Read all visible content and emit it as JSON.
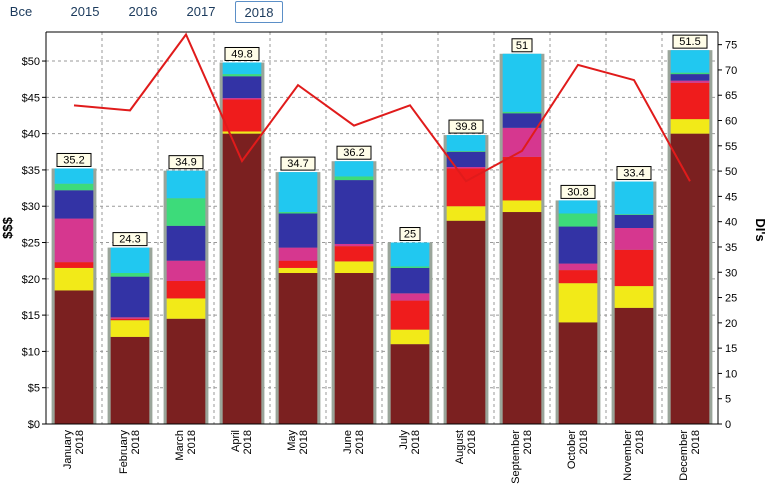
{
  "tabs": [
    {
      "label": "Все",
      "active": false
    },
    {
      "label": "2015",
      "active": false
    },
    {
      "label": "2016",
      "active": false
    },
    {
      "label": "2017",
      "active": false
    },
    {
      "label": "2018",
      "active": true
    }
  ],
  "chart_data": {
    "type": "bar",
    "stacked": true,
    "categories": [
      "January\n2018",
      "February\n2018",
      "March\n2018",
      "April\n2018",
      "May\n2018",
      "June\n2018",
      "July\n2018",
      "August\n2018",
      "September\n2018",
      "October\n2018",
      "November\n2018",
      "December\n2018"
    ],
    "totals": [
      35.2,
      24.3,
      34.9,
      49.8,
      34.7,
      36.2,
      25,
      39.8,
      51,
      30.8,
      33.4,
      51.5
    ],
    "total_labels": [
      "35.2",
      "24.3",
      "34.9",
      "49.8",
      "34.7",
      "36.2",
      "25",
      "39.8",
      "51",
      "30.8",
      "33.4",
      "51.5"
    ],
    "series": [
      {
        "color": "#7b2020",
        "values": [
          18.4,
          12.0,
          14.5,
          40.0,
          20.8,
          20.8,
          11.0,
          28.0,
          29.2,
          14.0,
          16.0,
          40.0
        ]
      },
      {
        "color": "#f2ea18",
        "values": [
          3.1,
          2.3,
          2.8,
          0.3,
          0.7,
          1.6,
          2.0,
          2.0,
          1.6,
          5.4,
          3.0,
          2.0
        ]
      },
      {
        "color": "#ef1c1c",
        "values": [
          0.8,
          0.2,
          2.4,
          4.4,
          1.0,
          2.1,
          4.0,
          5.2,
          6.0,
          1.8,
          5.0,
          5.0
        ]
      },
      {
        "color": "#d6378f",
        "values": [
          6.0,
          0.2,
          2.8,
          0.2,
          1.8,
          0.3,
          1.0,
          0.2,
          4.0,
          0.9,
          3.0,
          0.3
        ]
      },
      {
        "color": "#3333a5",
        "values": [
          3.9,
          5.6,
          4.8,
          3.0,
          4.7,
          8.8,
          3.5,
          2.1,
          2.0,
          5.1,
          1.8,
          0.9
        ]
      },
      {
        "color": "#3ddb7a",
        "values": [
          0.9,
          0.5,
          3.8,
          0.3,
          0.2,
          0.5,
          0.2,
          0.1,
          0.2,
          1.8,
          0.1,
          0.2
        ]
      },
      {
        "color": "#21c8f0",
        "values": [
          2.1,
          3.5,
          3.8,
          1.6,
          5.5,
          2.1,
          3.3,
          2.2,
          8.0,
          1.8,
          4.5,
          3.1
        ]
      }
    ],
    "line": {
      "color": "#e01b1b",
      "axis": "right",
      "values": [
        63,
        62,
        77,
        52,
        67,
        59,
        63,
        48,
        54,
        71,
        68,
        48
      ]
    },
    "ylabel": "$$$",
    "ylabel_right": "DI's",
    "ylim": [
      0,
      54
    ],
    "ylim_right": [
      0,
      77.5
    ],
    "yticks": [
      0,
      5,
      10,
      15,
      20,
      25,
      30,
      35,
      40,
      45,
      50
    ],
    "ytick_labels": [
      "$0",
      "$5",
      "$10",
      "$15",
      "$20",
      "$25",
      "$30",
      "$35",
      "$40",
      "$45",
      "$50"
    ],
    "yticks_right": [
      0,
      5,
      10,
      15,
      20,
      25,
      30,
      35,
      40,
      45,
      50,
      55,
      60,
      65,
      70,
      75
    ],
    "grid": true,
    "legend": "none"
  }
}
